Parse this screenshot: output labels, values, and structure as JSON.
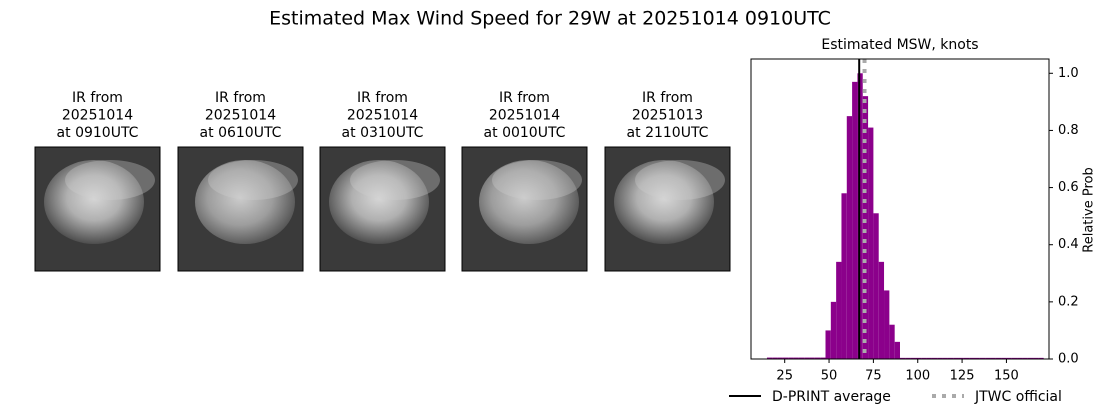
{
  "title": "Estimated Max Wind Speed for 29W at 20251014 0910UTC",
  "panels": [
    {
      "lines": [
        "IR from",
        "20251014",
        "at 0910UTC"
      ]
    },
    {
      "lines": [
        "IR from",
        "20251014",
        "at 0610UTC"
      ]
    },
    {
      "lines": [
        "IR from",
        "20251014",
        "at 0310UTC"
      ]
    },
    {
      "lines": [
        "IR from",
        "20251014",
        "at 0010UTC"
      ]
    },
    {
      "lines": [
        "IR from",
        "20251013",
        "at 2110UTC"
      ]
    }
  ],
  "chart_data": {
    "type": "histogram",
    "title": "Estimated MSW, knots",
    "y_label": "Relative Prob",
    "color": "#8b008b",
    "bins": [
      15,
      18,
      21,
      24,
      27,
      30,
      33,
      36,
      39,
      42,
      45,
      48,
      51,
      54,
      57,
      60,
      63,
      66,
      69,
      72,
      75,
      78,
      81,
      84,
      87,
      90,
      93,
      96,
      99,
      102,
      105,
      108,
      111,
      114,
      117,
      120,
      123,
      126,
      129,
      132,
      135,
      138,
      141,
      144,
      147,
      150,
      153,
      156,
      159,
      162,
      165,
      168,
      171
    ],
    "counts": [
      0.005,
      0.005,
      0.005,
      0.005,
      0.005,
      0.005,
      0.005,
      0.005,
      0.005,
      0.005,
      0.005,
      0.1,
      0.2,
      0.34,
      0.58,
      0.85,
      0.97,
      1.0,
      0.92,
      0.81,
      0.51,
      0.34,
      0.24,
      0.12,
      0.06,
      0.004,
      0.004,
      0.004,
      0.004,
      0.004,
      0.004,
      0.004,
      0.004,
      0.004,
      0.004,
      0.004,
      0.004,
      0.004,
      0.004,
      0.004,
      0.004,
      0.004,
      0.004,
      0.004,
      0.004,
      0.004,
      0.004,
      0.004,
      0.004,
      0.004,
      0.004,
      0.004
    ],
    "xlim": [
      6,
      174
    ],
    "xticks": [
      25,
      50,
      75,
      100,
      125,
      150
    ],
    "ylim": [
      0,
      1.05
    ],
    "yticks": [
      {
        "value": 0,
        "label": "0.0"
      },
      0.2,
      0.4,
      0.6,
      0.8,
      {
        "value": 1,
        "label": "1.0"
      }
    ],
    "lines": [
      {
        "name": "D-PRINT average",
        "value": 67,
        "color": "#000000",
        "style": "solid"
      },
      {
        "name": "JTWC official",
        "value": 70,
        "color": "#aaaaaa",
        "style": "dotted"
      }
    ]
  }
}
